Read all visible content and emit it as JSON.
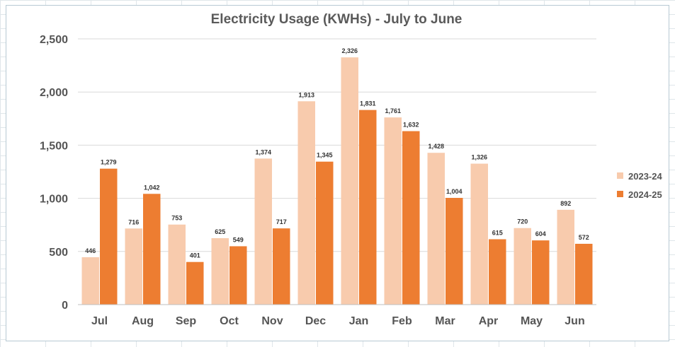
{
  "chart_data": {
    "type": "bar",
    "title": "Electricity Usage (KWHs) - July to June",
    "xlabel": "",
    "ylabel": "",
    "ylim": [
      0,
      2500
    ],
    "yticks": [
      0,
      500,
      1000,
      1500,
      2000,
      2500
    ],
    "ytick_labels": [
      "0",
      "500",
      "1,000",
      "1,500",
      "2,000",
      "2,500"
    ],
    "grid": true,
    "legend_position": "right",
    "categories": [
      "Jul",
      "Aug",
      "Sep",
      "Oct",
      "Nov",
      "Dec",
      "Jan",
      "Feb",
      "Mar",
      "Apr",
      "May",
      "Jun"
    ],
    "series": [
      {
        "name": "2023-24",
        "color": "#f8cbad",
        "values": [
          446,
          716,
          753,
          625,
          1374,
          1913,
          2326,
          1761,
          1428,
          1326,
          720,
          892
        ],
        "labels": [
          "446",
          "716",
          "753",
          "625",
          "1,374",
          "1,913",
          "2,326",
          "1,761",
          "1,428",
          "1,326",
          "720",
          "892"
        ]
      },
      {
        "name": "2024-25",
        "color": "#ed7d31",
        "values": [
          1279,
          1042,
          401,
          549,
          717,
          1345,
          1831,
          1632,
          1004,
          615,
          604,
          572
        ],
        "labels": [
          "1,279",
          "1,042",
          "401",
          "549",
          "717",
          "1,345",
          "1,831",
          "1,632",
          "1,004",
          "615",
          "604",
          "572"
        ]
      }
    ]
  },
  "colors": {
    "gridline": "#d9d9d9",
    "axis": "#bfbfbf"
  }
}
